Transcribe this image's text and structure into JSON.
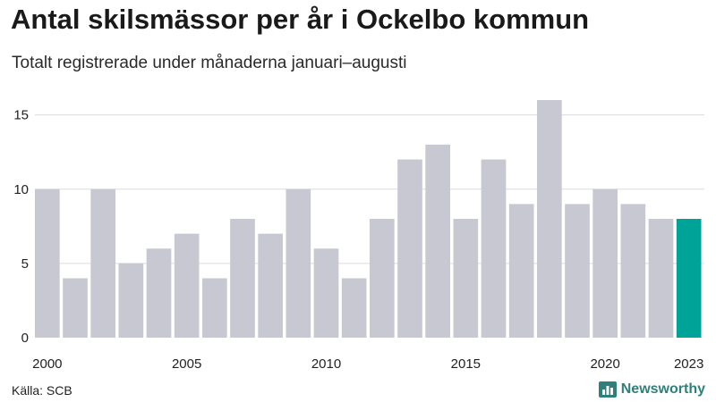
{
  "title": "Antal skilsmässor per år i Ockelbo kommun",
  "subtitle": "Totalt registrerade under månaderna januari–augusti",
  "source": "Källa: SCB",
  "brand": {
    "name": "Newsworthy",
    "icon": "bar-chart-logo-icon"
  },
  "colors": {
    "bar": "#c8c8d2",
    "highlight": "#00a398",
    "grid": "#dcdcdc",
    "brand": "#2f7f7a"
  },
  "chart_data": {
    "type": "bar",
    "title": "Antal skilsmässor per år i Ockelbo kommun",
    "subtitle": "Totalt registrerade under månaderna januari–augusti",
    "categories": [
      2000,
      2001,
      2002,
      2003,
      2004,
      2005,
      2006,
      2007,
      2008,
      2009,
      2010,
      2011,
      2012,
      2013,
      2014,
      2015,
      2016,
      2017,
      2018,
      2019,
      2020,
      2021,
      2022,
      2023
    ],
    "values": [
      10,
      4,
      10,
      5,
      6,
      7,
      4,
      8,
      7,
      10,
      6,
      4,
      8,
      12,
      13,
      8,
      12,
      9,
      16,
      9,
      10,
      9,
      8,
      8
    ],
    "highlight": [
      2023
    ],
    "xticks": [
      "2000",
      "2005",
      "2010",
      "2015",
      "2020",
      "2023"
    ],
    "yticks": [
      0,
      5,
      10,
      15
    ],
    "ylim": [
      0,
      16
    ],
    "xlabel": "",
    "ylabel": "",
    "grid": true,
    "legend": "none"
  }
}
